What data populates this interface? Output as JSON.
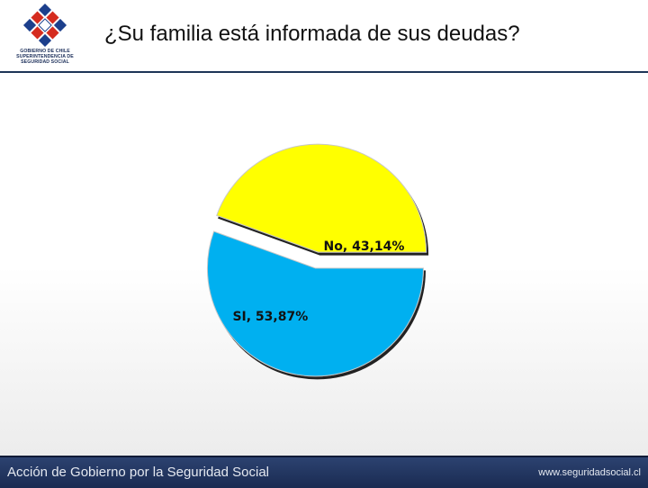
{
  "header": {
    "title": "¿Su familia está informada de sus deudas?",
    "logo_lines": [
      "GOBIERNO DE CHILE",
      "SUPERINTENDENCIA DE",
      "SEGURIDAD SOCIAL"
    ]
  },
  "chart_data": {
    "type": "pie",
    "title": "¿Su familia está informada de sus deudas?",
    "slices": [
      {
        "label": "No",
        "value": 43.14,
        "display": "No, 43,14%",
        "color": "#ffff00"
      },
      {
        "label": "SI",
        "value": 53.87,
        "display": "SI, 53,87%",
        "color": "#00b0f0"
      }
    ],
    "exploded": true
  },
  "footer": {
    "left_text": "Acción de Gobierno por la Seguridad Social",
    "right_text": "www.seguridadsocial.cl"
  },
  "colors": {
    "footer_bg": "#1f3160",
    "rule": "#1d3557",
    "logo_blue": "#1c3f8c",
    "logo_red": "#d52b1e"
  }
}
